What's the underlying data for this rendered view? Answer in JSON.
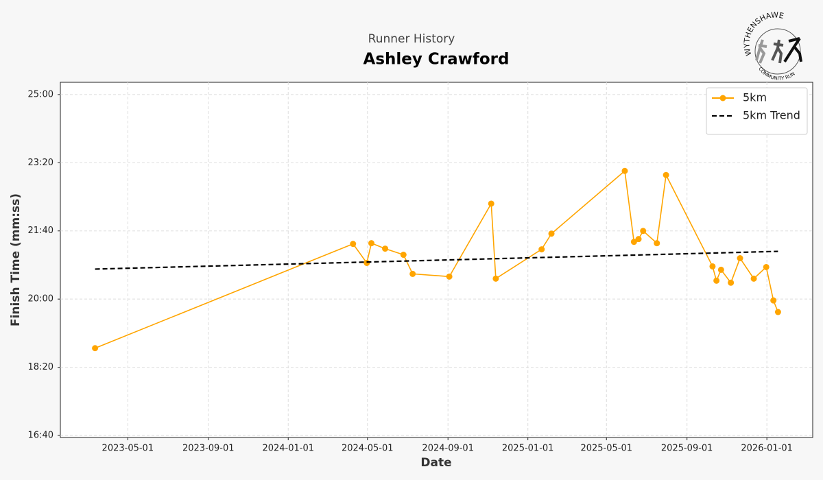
{
  "logo": [
    "WYTHENSHAWE",
    "COMMUNITY RUN"
  ],
  "chart_data": {
    "type": "line",
    "subtitle": "Runner History",
    "title": "Ashley Crawford",
    "x_label": "Date",
    "y_label": "Finish Time (mm:ss)",
    "series": [
      {
        "name": "5km",
        "color": "#ffa500",
        "marker": "circle",
        "linestyle": "solid",
        "x": [
          "2023-03-12",
          "2024-04-09",
          "2024-04-30",
          "2024-05-07",
          "2024-05-28",
          "2024-06-25",
          "2024-07-09",
          "2024-09-03",
          "2024-11-06",
          "2024-11-13",
          "2025-01-22",
          "2025-02-06",
          "2025-05-29",
          "2025-06-12",
          "2025-06-19",
          "2025-06-26",
          "2025-07-17",
          "2025-07-31",
          "2025-10-10",
          "2025-10-16",
          "2025-10-23",
          "2025-11-07",
          "2025-11-21",
          "2025-12-12",
          "2025-12-31",
          "2026-01-11",
          "2026-01-18"
        ],
        "values": [
          1128,
          1281,
          1253,
          1282,
          1274,
          1265,
          1237,
          1233,
          1340,
          1230,
          1273,
          1296,
          1388,
          1284,
          1288,
          1300,
          1282,
          1382,
          1248,
          1227,
          1243,
          1224,
          1260,
          1230,
          1247,
          1198,
          1181
        ]
      },
      {
        "name": "5km Trend",
        "color": "#000000",
        "marker": "none",
        "linestyle": "dashed",
        "x": [
          "2023-03-12",
          "2026-01-18"
        ],
        "values": [
          1244,
          1270
        ]
      }
    ],
    "xlim": [
      "2023-01-18",
      "2026-03-12"
    ],
    "xticks": [
      "2023-05-01",
      "2023-09-01",
      "2024-01-01",
      "2024-05-01",
      "2024-09-01",
      "2025-01-01",
      "2025-05-01",
      "2025-09-01",
      "2026-01-01"
    ],
    "ylim": [
      997,
      1518
    ],
    "yticks": [
      {
        "value": 1000,
        "label": "16:40"
      },
      {
        "value": 1100,
        "label": "18:20"
      },
      {
        "value": 1200,
        "label": "20:00"
      },
      {
        "value": 1300,
        "label": "21:40"
      },
      {
        "value": 1400,
        "label": "23:20"
      },
      {
        "value": 1500,
        "label": "25:00"
      }
    ],
    "grid": true,
    "legend": "upper right"
  }
}
